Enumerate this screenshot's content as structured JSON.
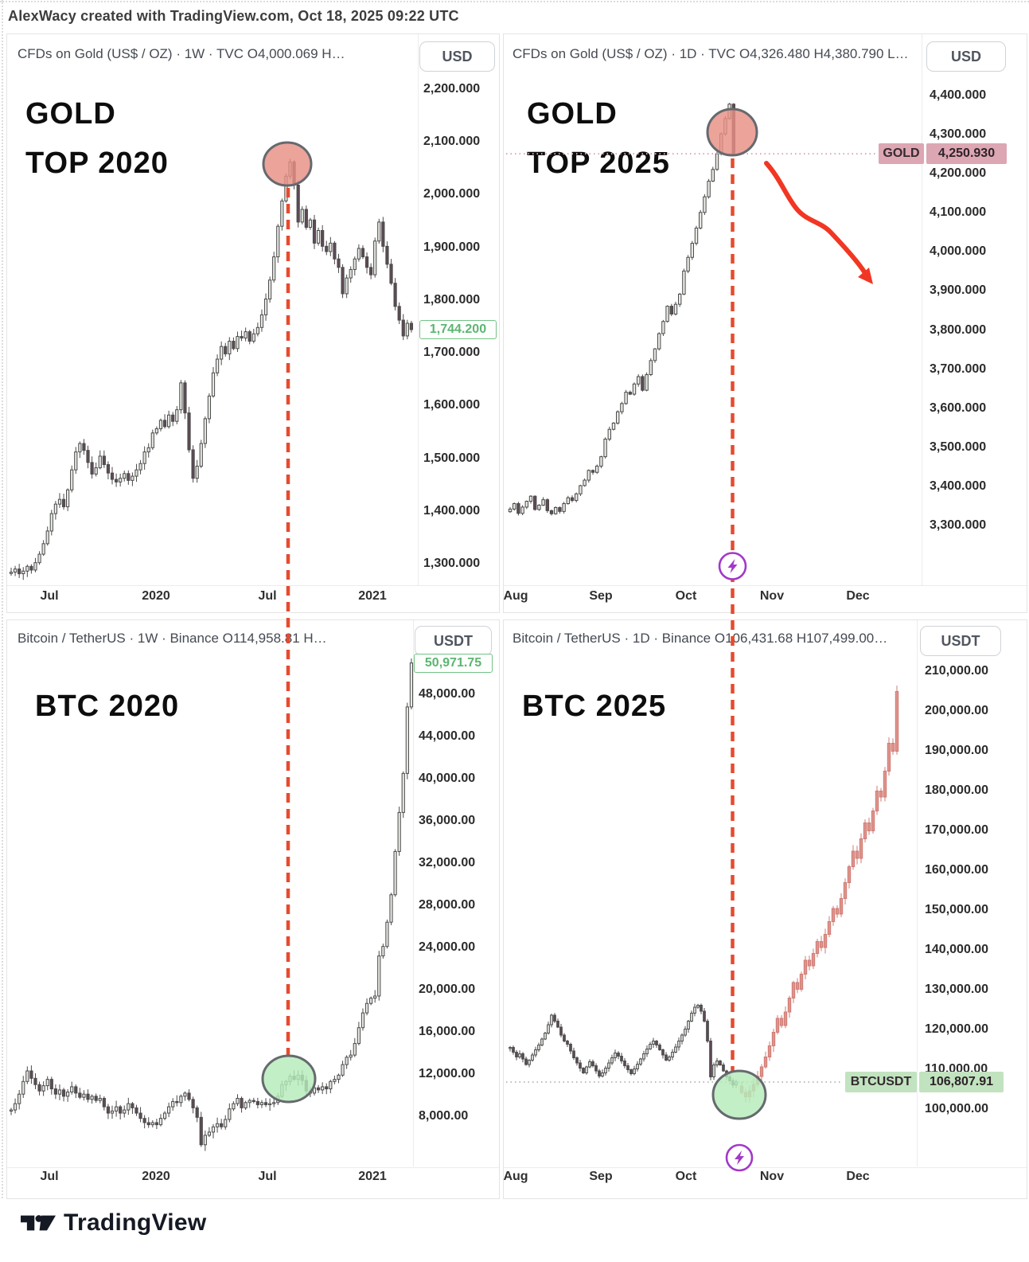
{
  "page": {
    "credit": "AlexWacy created with TradingView.com, Oct 18, 2025 09:22 UTC",
    "brand": "TradingView"
  },
  "colors": {
    "up_fill": "#e6eae2",
    "up_stroke": "#4a4a4a",
    "down_fill": "#5e4b55",
    "down_stroke": "#4a4a4a",
    "wick": "#4a4a4a",
    "projection_fill": "#de938c",
    "projection_stroke": "#cf7b74",
    "dashed_line": "#e64b2e",
    "circle_top_fill": "#e78f84",
    "circle_bottom_fill": "#b5ecba",
    "circle_stroke": "#66696e",
    "arrow": "#f13723",
    "lightning": "#a238c8",
    "gold_tag_bg": "#dca6b2",
    "btc_tag_bg": "#c2e3bf",
    "gold_dotted": "#dca6b2",
    "btc_dotted": "#b8beb8"
  },
  "chart_data": [
    {
      "id": "gold_2020",
      "type": "candlestick",
      "title": "CFDs on Gold (US$ / OZ) · 1W · TVC  O4,000.069  H…",
      "currency": "USD",
      "big_label": [
        "GOLD",
        "TOP 2020"
      ],
      "x_ticks": [
        "Jul",
        "2020",
        "Jul",
        "2021"
      ],
      "y_ticks": [
        {
          "t": "2,200.000",
          "v": 2200
        },
        {
          "t": "2,100.000",
          "v": 2100
        },
        {
          "t": "2,000.000",
          "v": 2000
        },
        {
          "t": "1,900.000",
          "v": 1900
        },
        {
          "t": "1,800.000",
          "v": 1800
        },
        {
          "t": "1,700.000",
          "v": 1700
        },
        {
          "t": "1,600.000",
          "v": 1600
        },
        {
          "t": "1,500.000",
          "v": 1500
        },
        {
          "t": "1,400.000",
          "v": 1400
        },
        {
          "t": "1,300.000",
          "v": 1300
        }
      ],
      "last_price": {
        "t": "1,744.200",
        "v": 1744.2
      },
      "circle": "top",
      "closes": [
        1284,
        1290,
        1281,
        1286,
        1295,
        1288,
        1302,
        1318,
        1338,
        1362,
        1395,
        1413,
        1422,
        1408,
        1440,
        1478,
        1512,
        1528,
        1515,
        1492,
        1470,
        1482,
        1504,
        1488,
        1472,
        1460,
        1455,
        1462,
        1471,
        1458,
        1466,
        1478,
        1490,
        1512,
        1520,
        1548,
        1556,
        1572,
        1560,
        1582,
        1570,
        1592,
        1643,
        1586,
        1516,
        1462,
        1485,
        1528,
        1575,
        1618,
        1662,
        1688,
        1712,
        1698,
        1722,
        1708,
        1731,
        1728,
        1740,
        1722,
        1736,
        1748,
        1772,
        1802,
        1838,
        1882,
        1940,
        1988,
        2035,
        2062,
        2018,
        1948,
        1972,
        1938,
        1952,
        1908,
        1932,
        1902,
        1892,
        1908,
        1878,
        1862,
        1812,
        1842,
        1858,
        1878,
        1898,
        1882,
        1862,
        1848,
        1912,
        1948,
        1902,
        1868,
        1832,
        1788,
        1762,
        1732,
        1756,
        1744
      ]
    },
    {
      "id": "gold_2025",
      "type": "candlestick",
      "title": "CFDs on Gold (US$ / OZ) · 1D · TVC  O4,326.480  H4,380.790  L…",
      "currency": "USD",
      "big_label": [
        "GOLD",
        "TOP 2025"
      ],
      "x_ticks": [
        "Aug",
        "Sep",
        "Oct",
        "Nov",
        "Dec"
      ],
      "y_ticks": [
        {
          "t": "4,400.000",
          "v": 4400
        },
        {
          "t": "4,300.000",
          "v": 4300
        },
        {
          "t": "4,200.000",
          "v": 4200
        },
        {
          "t": "4,100.000",
          "v": 4100
        },
        {
          "t": "4,000.000",
          "v": 4000
        },
        {
          "t": "3,900.000",
          "v": 3900
        },
        {
          "t": "3,800.000",
          "v": 3800
        },
        {
          "t": "3,700.000",
          "v": 3700
        },
        {
          "t": "3,600.000",
          "v": 3600
        },
        {
          "t": "3,500.000",
          "v": 3500
        },
        {
          "t": "3,400.000",
          "v": 3400
        },
        {
          "t": "3,300.000",
          "v": 3300
        }
      ],
      "price_tag": {
        "symbol": "GOLD",
        "t": "4,250.930",
        "v": 4250.93
      },
      "circle": "top",
      "closes": [
        3342,
        3356,
        3331,
        3347,
        3362,
        3375,
        3341,
        3352,
        3366,
        3338,
        3330,
        3346,
        3336,
        3356,
        3371,
        3364,
        3381,
        3402,
        3416,
        3441,
        3436,
        3452,
        3476,
        3521,
        3546,
        3562,
        3591,
        3612,
        3641,
        3636,
        3662,
        3681,
        3646,
        3686,
        3722,
        3752,
        3791,
        3822,
        3861,
        3841,
        3866,
        3892,
        3951,
        3986,
        4022,
        4061,
        4101,
        4141,
        4181,
        4211,
        4251,
        4302,
        4341,
        4378,
        4251
      ]
    },
    {
      "id": "btc_2020",
      "type": "candlestick",
      "title": "Bitcoin / TetherUS · 1W · Binance  O114,958.81  H…",
      "currency": "USDT",
      "big_label": [
        "BTC 2020"
      ],
      "x_ticks": [
        "Jul",
        "2020",
        "Jul",
        "2021"
      ],
      "y_ticks": [
        {
          "t": "48,000.00",
          "v": 48000
        },
        {
          "t": "44,000.00",
          "v": 44000
        },
        {
          "t": "40,000.00",
          "v": 40000
        },
        {
          "t": "36,000.00",
          "v": 36000
        },
        {
          "t": "32,000.00",
          "v": 32000
        },
        {
          "t": "28,000.00",
          "v": 28000
        },
        {
          "t": "24,000.00",
          "v": 24000
        },
        {
          "t": "20,000.00",
          "v": 20000
        },
        {
          "t": "16,000.00",
          "v": 16000
        },
        {
          "t": "12,000.00",
          "v": 12000
        },
        {
          "t": "8,000.00",
          "v": 8000
        }
      ],
      "last_price": {
        "t": "50,971.75",
        "v": 50971.75
      },
      "circle": "bottom",
      "closes": [
        8600,
        9200,
        10100,
        11300,
        12300,
        11600,
        11000,
        10400,
        10900,
        11500,
        10600,
        10100,
        10500,
        9900,
        10300,
        10800,
        10200,
        9800,
        10100,
        9600,
        9900,
        9500,
        9700,
        8900,
        8300,
        8500,
        8900,
        8300,
        8600,
        9200,
        8800,
        8300,
        7800,
        7400,
        7200,
        7400,
        7200,
        7800,
        8300,
        8900,
        9400,
        9300,
        9900,
        10200,
        9600,
        8800,
        7900,
        5300,
        6200,
        6500,
        7000,
        7300,
        7000,
        7700,
        8700,
        9200,
        9700,
        8800,
        9300,
        9500,
        9400,
        9100,
        9300,
        9100,
        9200,
        9300,
        9900,
        11000,
        11300,
        11800,
        11500,
        11900,
        11400,
        10400,
        10200,
        10700,
        10500,
        10800,
        10600,
        11300,
        11500,
        11900,
        12900,
        13600,
        13800,
        14900,
        16400,
        17800,
        18700,
        19200,
        19400,
        23200,
        24100,
        26400,
        29000,
        33100,
        36800,
        40500,
        46800,
        50971
      ]
    },
    {
      "id": "btc_2025",
      "type": "candlestick",
      "title": "Bitcoin / TetherUS · 1D · Binance  O106,431.68  H107,499.00…",
      "currency": "USDT",
      "big_label": [
        "BTC 2025"
      ],
      "x_ticks": [
        "Aug",
        "Sep",
        "Oct",
        "Nov",
        "Dec"
      ],
      "y_ticks": [
        {
          "t": "210,000.00",
          "v": 210000
        },
        {
          "t": "200,000.00",
          "v": 200000
        },
        {
          "t": "190,000.00",
          "v": 190000
        },
        {
          "t": "180,000.00",
          "v": 180000
        },
        {
          "t": "170,000.00",
          "v": 170000
        },
        {
          "t": "160,000.00",
          "v": 160000
        },
        {
          "t": "150,000.00",
          "v": 150000
        },
        {
          "t": "140,000.00",
          "v": 140000
        },
        {
          "t": "130,000.00",
          "v": 130000
        },
        {
          "t": "120,000.00",
          "v": 120000
        },
        {
          "t": "110,000.00",
          "v": 110000
        },
        {
          "t": "100,000.00",
          "v": 100000
        }
      ],
      "price_tag": {
        "symbol": "BTCUSDT",
        "t": "106,807.91",
        "v": 106807.91
      },
      "circle": "bottom",
      "closes": [
        115500,
        114300,
        113100,
        113900,
        112600,
        111200,
        112300,
        113600,
        114900,
        116100,
        117600,
        119100,
        121200,
        123600,
        122100,
        120600,
        118600,
        117100,
        116300,
        114600,
        112900,
        111600,
        110300,
        109100,
        110600,
        111900,
        110900,
        109600,
        108300,
        109100,
        110300,
        111600,
        112900,
        114100,
        113300,
        112100,
        110900,
        109900,
        108900,
        110100,
        111300,
        112600,
        113900,
        115100,
        116300,
        117100,
        116100,
        114900,
        113600,
        112300,
        113100,
        114300,
        115600,
        117100,
        118600,
        120100,
        122100,
        124100,
        125600,
        126100,
        124600,
        122100,
        117100,
        108100,
        111100,
        112100,
        111100,
        109600,
        108100,
        107100,
        106100,
        106807
      ],
      "projection_closes": [
        104200,
        103100,
        104600,
        106200,
        108200,
        110600,
        113100,
        115900,
        119300,
        122800,
        121000,
        124400,
        127900,
        131800,
        130100,
        133900,
        137400,
        136000,
        139100,
        142100,
        140600,
        143900,
        147100,
        150400,
        149000,
        152900,
        156900,
        160900,
        164800,
        163000,
        167900,
        171900,
        169900,
        174900,
        179900,
        178400,
        184900,
        191900,
        189900,
        204900
      ]
    }
  ]
}
